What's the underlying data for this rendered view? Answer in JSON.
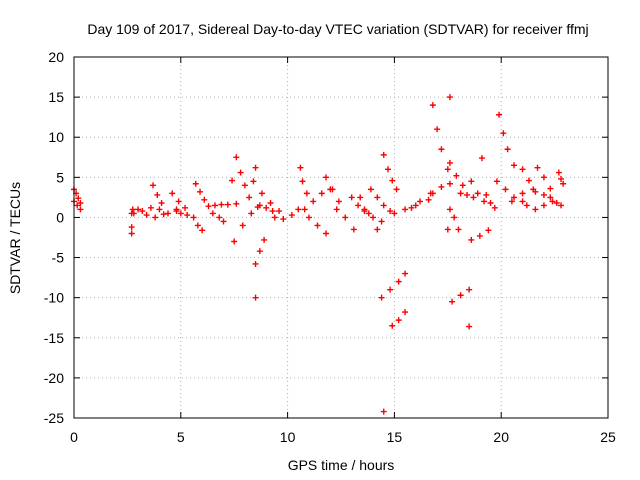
{
  "chart_data": {
    "type": "scatter",
    "title": "Day 109 of 2017, Sidereal Day-to-day VTEC variation (SDTVAR) for receiver ffmj",
    "xlabel": "GPS time / hours",
    "ylabel": "SDTVAR / TECUs",
    "xlim": [
      0,
      25
    ],
    "ylim": [
      -25,
      20
    ],
    "xticks": [
      0,
      5,
      10,
      15,
      20,
      25
    ],
    "yticks": [
      -25,
      -20,
      -15,
      -10,
      -5,
      0,
      5,
      10,
      15,
      20
    ],
    "grid": true,
    "legend": "none",
    "marker": "+",
    "color": "#ff0000",
    "series": [
      {
        "segments": [
          [
            [
              0.0,
              3.5
            ],
            [
              0.1,
              3.0
            ],
            [
              0.2,
              2.4
            ],
            [
              0.3,
              1.8
            ]
          ],
          [
            [
              0.0,
              2.0
            ],
            [
              0.15,
              1.5
            ],
            [
              0.3,
              1.0
            ]
          ],
          [
            [
              2.7,
              -2.0
            ],
            [
              2.7,
              -1.2
            ],
            [
              2.7,
              0.5
            ],
            [
              2.75,
              1.0
            ]
          ],
          [
            [
              2.8,
              0.5
            ],
            [
              3.2,
              0.8
            ],
            [
              3.6,
              1.2
            ],
            [
              4.0,
              1.0
            ],
            [
              4.4,
              0.5
            ],
            [
              4.8,
              0.8
            ]
          ],
          [
            [
              3.0,
              1.0
            ],
            [
              3.4,
              0.3
            ],
            [
              3.8,
              0.0
            ],
            [
              4.2,
              0.4
            ]
          ],
          [
            [
              3.7,
              4.0
            ],
            [
              3.9,
              2.8
            ],
            [
              4.1,
              1.8
            ]
          ],
          [
            [
              4.6,
              3.0
            ],
            [
              4.9,
              2.0
            ],
            [
              5.2,
              1.2
            ]
          ],
          [
            [
              4.8,
              1.0
            ],
            [
              5.0,
              0.5
            ],
            [
              5.3,
              0.3
            ]
          ],
          [
            [
              5.6,
              0.0
            ],
            [
              5.8,
              -1.0
            ],
            [
              6.0,
              -1.6
            ]
          ],
          [
            [
              5.7,
              4.2
            ],
            [
              5.9,
              3.2
            ],
            [
              6.1,
              2.2
            ],
            [
              6.3,
              1.4
            ]
          ],
          [
            [
              6.5,
              0.5
            ],
            [
              6.8,
              0.0
            ],
            [
              7.0,
              -0.5
            ]
          ],
          [
            [
              6.6,
              1.5
            ],
            [
              6.9,
              1.6
            ],
            [
              7.2,
              1.6
            ],
            [
              7.6,
              1.7
            ]
          ],
          [
            [
              7.6,
              7.5
            ],
            [
              7.8,
              5.6
            ],
            [
              8.0,
              4.0
            ],
            [
              8.2,
              2.5
            ]
          ],
          [
            [
              7.4,
              4.6
            ]
          ],
          [
            [
              7.5,
              -3.0
            ],
            [
              7.9,
              -1.0
            ],
            [
              8.3,
              0.5
            ],
            [
              8.6,
              1.3
            ]
          ],
          [
            [
              8.5,
              6.2
            ]
          ],
          [
            [
              8.4,
              4.5
            ],
            [
              8.8,
              3.0
            ],
            [
              9.2,
              1.8
            ],
            [
              9.6,
              0.8
            ]
          ],
          [
            [
              8.5,
              -5.8
            ],
            [
              8.7,
              -4.2
            ],
            [
              8.9,
              -2.8
            ]
          ],
          [
            [
              8.5,
              -10.0
            ]
          ],
          [
            [
              8.7,
              1.5
            ],
            [
              9.0,
              1.2
            ],
            [
              9.3,
              0.8
            ]
          ],
          [
            [
              9.4,
              0.0
            ],
            [
              9.8,
              -0.2
            ],
            [
              10.2,
              0.3
            ],
            [
              10.5,
              1.0
            ]
          ],
          [
            [
              10.6,
              6.2
            ],
            [
              10.7,
              4.5
            ],
            [
              10.9,
              3.0
            ]
          ],
          [
            [
              10.8,
              1.0
            ],
            [
              11.2,
              2.0
            ],
            [
              11.6,
              3.0
            ],
            [
              12.0,
              3.5
            ]
          ],
          [
            [
              11.0,
              0.0
            ],
            [
              11.4,
              -1.0
            ],
            [
              11.8,
              -2.0
            ]
          ],
          [
            [
              11.8,
              5.0
            ],
            [
              12.1,
              3.5
            ],
            [
              12.4,
              2.0
            ]
          ],
          [
            [
              12.3,
              1.0
            ],
            [
              12.7,
              0.0
            ],
            [
              13.1,
              -1.5
            ]
          ],
          [
            [
              13.0,
              2.5
            ],
            [
              13.3,
              1.5
            ],
            [
              13.6,
              0.8
            ]
          ],
          [
            [
              13.4,
              2.5
            ],
            [
              13.8,
              0.5
            ],
            [
              14.2,
              -1.5
            ]
          ],
          [
            [
              13.6,
              1.0
            ],
            [
              14.0,
              0.0
            ],
            [
              14.4,
              -0.5
            ]
          ],
          [
            [
              13.9,
              3.5
            ]
          ],
          [
            [
              14.2,
              2.5
            ],
            [
              14.5,
              1.5
            ],
            [
              14.8,
              0.8
            ]
          ],
          [
            [
              14.5,
              7.8
            ],
            [
              14.7,
              6.0
            ],
            [
              14.9,
              4.6
            ],
            [
              15.1,
              3.5
            ]
          ],
          [
            [
              14.5,
              -24.2
            ]
          ],
          [
            [
              14.4,
              -10.0
            ],
            [
              14.8,
              -9.0
            ],
            [
              15.2,
              -8.0
            ],
            [
              15.5,
              -7.0
            ]
          ],
          [
            [
              14.9,
              -13.5
            ],
            [
              15.2,
              -12.8
            ],
            [
              15.5,
              -11.8
            ]
          ],
          [
            [
              15.0,
              0.5
            ],
            [
              15.5,
              1.0
            ],
            [
              16.0,
              1.5
            ],
            [
              16.6,
              2.2
            ]
          ],
          [
            [
              15.8,
              1.2
            ],
            [
              16.2,
              2.0
            ],
            [
              16.7,
              3.0
            ]
          ],
          [
            [
              16.8,
              14.0
            ],
            [
              17.0,
              11.0
            ],
            [
              17.2,
              8.5
            ],
            [
              17.5,
              6.0
            ]
          ],
          [
            [
              16.8,
              3.0
            ],
            [
              17.2,
              3.8
            ],
            [
              17.6,
              4.2
            ]
          ],
          [
            [
              17.6,
              15.0
            ]
          ],
          [
            [
              17.5,
              -1.5
            ]
          ],
          [
            [
              17.6,
              6.8
            ],
            [
              17.9,
              5.2
            ],
            [
              18.2,
              4.0
            ]
          ],
          [
            [
              17.7,
              -10.5
            ],
            [
              18.1,
              -9.7
            ],
            [
              18.5,
              -9.0
            ]
          ],
          [
            [
              17.6,
              1.0
            ],
            [
              17.8,
              0.0
            ],
            [
              18.0,
              -1.5
            ]
          ],
          [
            [
              18.1,
              3.0
            ],
            [
              18.4,
              2.8
            ],
            [
              18.7,
              2.5
            ]
          ],
          [
            [
              18.5,
              -13.6
            ]
          ],
          [
            [
              18.6,
              4.5
            ],
            [
              18.9,
              3.0
            ],
            [
              19.2,
              2.0
            ]
          ],
          [
            [
              18.6,
              -2.8
            ],
            [
              19.0,
              -2.3
            ],
            [
              19.4,
              -1.6
            ]
          ],
          [
            [
              19.1,
              7.4
            ]
          ],
          [
            [
              19.3,
              2.8
            ],
            [
              19.5,
              1.8
            ],
            [
              19.7,
              1.2
            ]
          ],
          [
            [
              19.9,
              12.8
            ],
            [
              20.1,
              10.5
            ],
            [
              20.3,
              8.5
            ],
            [
              20.6,
              6.5
            ]
          ],
          [
            [
              19.8,
              4.5
            ],
            [
              20.2,
              3.5
            ],
            [
              20.6,
              2.5
            ],
            [
              21.0,
              2.0
            ]
          ],
          [
            [
              20.5,
              2.0
            ],
            [
              21.0,
              3.0
            ],
            [
              21.5,
              3.5
            ],
            [
              22.0,
              2.8
            ]
          ],
          [
            [
              21.0,
              6.0
            ],
            [
              21.3,
              4.6
            ],
            [
              21.6,
              3.2
            ]
          ],
          [
            [
              21.2,
              1.5
            ],
            [
              21.6,
              1.0
            ],
            [
              22.0,
              1.5
            ],
            [
              22.4,
              2.0
            ]
          ],
          [
            [
              21.7,
              6.2
            ],
            [
              22.0,
              5.0
            ],
            [
              22.3,
              3.6
            ]
          ],
          [
            [
              22.3,
              2.5
            ],
            [
              22.6,
              1.8
            ],
            [
              22.8,
              1.5
            ]
          ],
          [
            [
              22.7,
              5.6
            ],
            [
              22.8,
              4.8
            ],
            [
              22.9,
              4.2
            ]
          ]
        ]
      }
    ]
  }
}
